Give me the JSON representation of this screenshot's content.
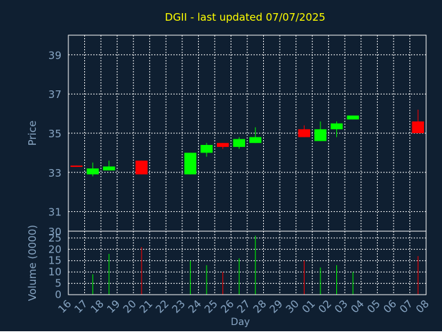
{
  "chart_data": {
    "type": "candlestick",
    "title": "DGII - last updated 07/07/2025",
    "xlabel": "Day",
    "colors": {
      "background": "#0f1f31",
      "title": "#ffff00",
      "axis_label": "#87a5c3",
      "tick_label": "#87a5c3",
      "grid": "#ffffff",
      "up": "#00ff00",
      "down": "#ff0000"
    },
    "x_tick_labels": [
      "16",
      "17",
      "18",
      "19",
      "20",
      "21",
      "22",
      "23",
      "24",
      "25",
      "26",
      "27",
      "28",
      "29",
      "30",
      "01",
      "02",
      "03",
      "04",
      "05",
      "06",
      "07",
      "08"
    ],
    "price_panel": {
      "ylabel": "Price",
      "ylim": [
        30,
        40
      ],
      "y_ticks": [
        30,
        31,
        33,
        35,
        37,
        39
      ],
      "y_tick_labels": [
        "30",
        "31",
        "33",
        "35",
        "37",
        "39"
      ],
      "grid": true
    },
    "volume_panel": {
      "ylabel": "Volume (0000)",
      "ylim": [
        0,
        28
      ],
      "y_ticks": [
        0,
        5,
        10,
        15,
        20,
        25
      ],
      "y_tick_labels": [
        "0",
        "5",
        "10",
        "15",
        "20",
        "25"
      ],
      "grid": true
    },
    "candles": [
      {
        "day": "16",
        "open": 33.35,
        "high": 33.35,
        "low": 33.3,
        "close": 33.3,
        "volume": 0
      },
      {
        "day": "17",
        "open": 32.9,
        "high": 33.5,
        "low": 32.8,
        "close": 33.2,
        "volume": 9
      },
      {
        "day": "18",
        "open": 33.1,
        "high": 33.6,
        "low": 33.1,
        "close": 33.3,
        "volume": 18
      },
      {
        "day": "20",
        "open": 33.6,
        "high": 33.6,
        "low": 32.9,
        "close": 32.9,
        "volume": 21
      },
      {
        "day": "23",
        "open": 32.9,
        "high": 34.0,
        "low": 32.9,
        "close": 34.0,
        "volume": 15
      },
      {
        "day": "24",
        "open": 34.0,
        "high": 34.5,
        "low": 33.8,
        "close": 34.4,
        "volume": 13
      },
      {
        "day": "25",
        "open": 34.5,
        "high": 34.5,
        "low": 34.2,
        "close": 34.3,
        "volume": 10
      },
      {
        "day": "26",
        "open": 34.3,
        "high": 34.8,
        "low": 34.2,
        "close": 34.7,
        "volume": 16
      },
      {
        "day": "27",
        "open": 34.5,
        "high": 35.3,
        "low": 34.5,
        "close": 34.8,
        "volume": 26
      },
      {
        "day": "30",
        "open": 35.2,
        "high": 35.4,
        "low": 34.8,
        "close": 34.8,
        "volume": 15
      },
      {
        "day": "01",
        "open": 34.6,
        "high": 35.6,
        "low": 34.6,
        "close": 35.2,
        "volume": 12
      },
      {
        "day": "02",
        "open": 35.2,
        "high": 35.6,
        "low": 34.8,
        "close": 35.5,
        "volume": 13
      },
      {
        "day": "03",
        "open": 35.7,
        "high": 35.9,
        "low": 35.7,
        "close": 35.9,
        "volume": 10
      },
      {
        "day": "07",
        "open": 35.6,
        "high": 36.2,
        "low": 35.0,
        "close": 35.0,
        "volume": 17
      }
    ]
  }
}
